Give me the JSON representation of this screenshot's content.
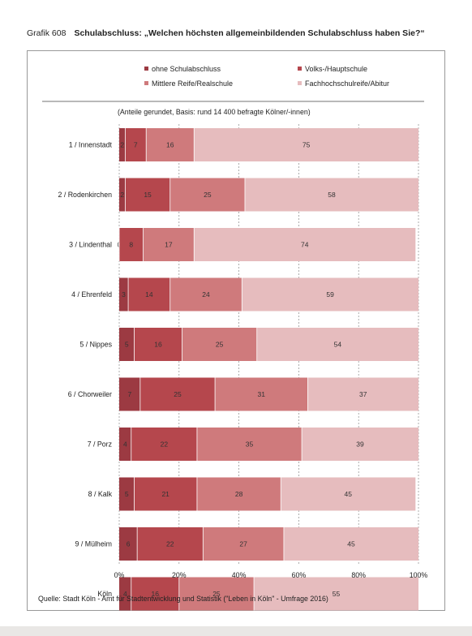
{
  "header": {
    "figure_number": "Grafik 608",
    "title": "Schulabschluss: „Welchen höchsten allgemeinbildenden Schulabschluss haben Sie?“"
  },
  "note": "(Anteile gerundet, Basis: rund 14 400 befragte Kölner/-innen)",
  "source": "Quelle: Stadt Köln - Amt für Stadtentwicklung und Statistik (\"Leben in Köln\" - Umfrage 2016)",
  "chart_data": {
    "type": "bar",
    "orientation": "horizontal",
    "stacked": true,
    "percent_stacked": true,
    "categories": [
      "1 / Innenstadt",
      "2 / Rodenkirchen",
      "3 / Lindenthal",
      "4 / Ehrenfeld",
      "5 / Nippes",
      "6 / Chorweiler",
      "7 / Porz",
      "8 / Kalk",
      "9 / Mülheim",
      "Köln"
    ],
    "series": [
      {
        "name": "ohne Schulabschluss",
        "color": "#9c3a42",
        "values": [
          2,
          2,
          0,
          3,
          5,
          7,
          4,
          5,
          6,
          4
        ]
      },
      {
        "name": "Volks-/Hauptschule",
        "color": "#b5474d",
        "values": [
          7,
          15,
          8,
          14,
          16,
          25,
          22,
          21,
          22,
          16
        ]
      },
      {
        "name": "Mittlere Reife/Realschule",
        "color": "#cf7a7c",
        "values": [
          16,
          25,
          17,
          24,
          25,
          31,
          35,
          28,
          27,
          25
        ]
      },
      {
        "name": "Fachhochschulreife/Abitur",
        "color": "#e6bcbe",
        "values": [
          75,
          58,
          74,
          59,
          54,
          37,
          39,
          45,
          45,
          55
        ]
      }
    ],
    "xlim": [
      0,
      100
    ],
    "xticks": [
      "0%",
      "20%",
      "40%",
      "60%",
      "80%",
      "100%"
    ],
    "grid": true,
    "grid_style": "dashed vertical",
    "legend_position": "top",
    "label_color": "#333333"
  }
}
